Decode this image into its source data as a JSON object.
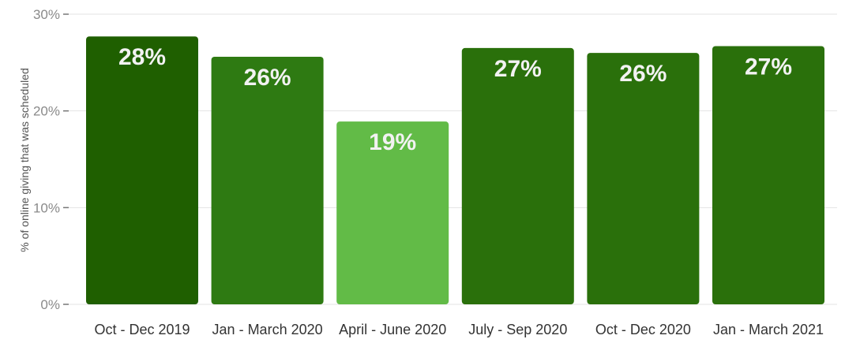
{
  "chart_data": {
    "type": "bar",
    "title": "",
    "xlabel": "",
    "ylabel": "% of online giving that was scheduled",
    "ylim": [
      0,
      30
    ],
    "yticks": [
      0,
      10,
      20,
      30
    ],
    "ytick_labels": [
      "0%",
      "10%",
      "20%",
      "30%"
    ],
    "grid": true,
    "categories": [
      "Oct - Dec 2019",
      "Jan - March 2020",
      "April - June 2020",
      "July - Sep 2020",
      "Oct - Dec 2020",
      "Jan - March 2021"
    ],
    "values": [
      27.7,
      25.6,
      18.9,
      26.5,
      26.0,
      26.7
    ],
    "value_labels": [
      "28%",
      "26%",
      "19%",
      "27%",
      "26%",
      "27%"
    ],
    "bar_colors": [
      "#1f5f00",
      "#2e7a12",
      "#62bb47",
      "#2a700b",
      "#2a700b",
      "#2a700b"
    ]
  }
}
